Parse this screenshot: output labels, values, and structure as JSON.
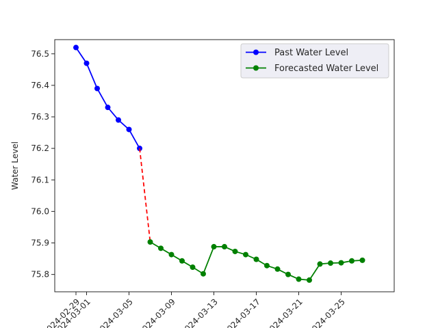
{
  "chart_data": {
    "type": "line",
    "title": "",
    "xlabel": "",
    "ylabel": "Water Level",
    "ylim": [
      75.745,
      76.545
    ],
    "xlim": [
      "2024-02-27",
      "2024-03-30"
    ],
    "y_ticks": [
      75.8,
      75.9,
      76.0,
      76.1,
      76.2,
      76.3,
      76.4,
      76.5
    ],
    "y_tick_labels": [
      "75.8",
      "75.9",
      "76.0",
      "76.1",
      "76.2",
      "76.3",
      "76.4",
      "76.5"
    ],
    "x_ticks": [
      "2024-02-29",
      "2024-03-01",
      "2024-03-05",
      "2024-03-09",
      "2024-03-13",
      "2024-03-17",
      "2024-03-21",
      "2024-03-25"
    ],
    "x_tick_labels": [
      "2024-02-29",
      "2024-03-01",
      "2024-03-05",
      "2024-03-09",
      "2024-03-13",
      "2024-03-17",
      "2024-03-21",
      "2024-03-25"
    ],
    "grid": false,
    "legend_position": "top-right",
    "series": [
      {
        "name": "Past Water Level",
        "color": "#0000ff",
        "marker": "circle",
        "x": [
          "2024-02-29",
          "2024-03-01",
          "2024-03-02",
          "2024-03-03",
          "2024-03-04",
          "2024-03-05",
          "2024-03-06"
        ],
        "y": [
          76.52,
          76.47,
          76.39,
          76.33,
          76.29,
          76.26,
          76.2
        ]
      },
      {
        "name": "",
        "color": "#ff0000",
        "dashed": true,
        "marker": "none",
        "x": [
          "2024-03-06",
          "2024-03-07"
        ],
        "y": [
          76.2,
          75.903
        ]
      },
      {
        "name": "Forecasted Water Level",
        "color": "#008000",
        "marker": "circle",
        "x": [
          "2024-03-07",
          "2024-03-08",
          "2024-03-09",
          "2024-03-10",
          "2024-03-11",
          "2024-03-12",
          "2024-03-13",
          "2024-03-14",
          "2024-03-15",
          "2024-03-16",
          "2024-03-17",
          "2024-03-18",
          "2024-03-19",
          "2024-03-20",
          "2024-03-21",
          "2024-03-22",
          "2024-03-23",
          "2024-03-24",
          "2024-03-25",
          "2024-03-26",
          "2024-03-27"
        ],
        "y": [
          75.903,
          75.883,
          75.863,
          75.843,
          75.823,
          75.802,
          75.888,
          75.888,
          75.873,
          75.863,
          75.848,
          75.828,
          75.817,
          75.8,
          75.785,
          75.782,
          75.833,
          75.836,
          75.837,
          75.843,
          75.845
        ]
      }
    ],
    "legend_entries": [
      {
        "label": "Past Water Level",
        "color": "#0000ff"
      },
      {
        "label": "Forecasted Water Level",
        "color": "#008000"
      }
    ]
  }
}
